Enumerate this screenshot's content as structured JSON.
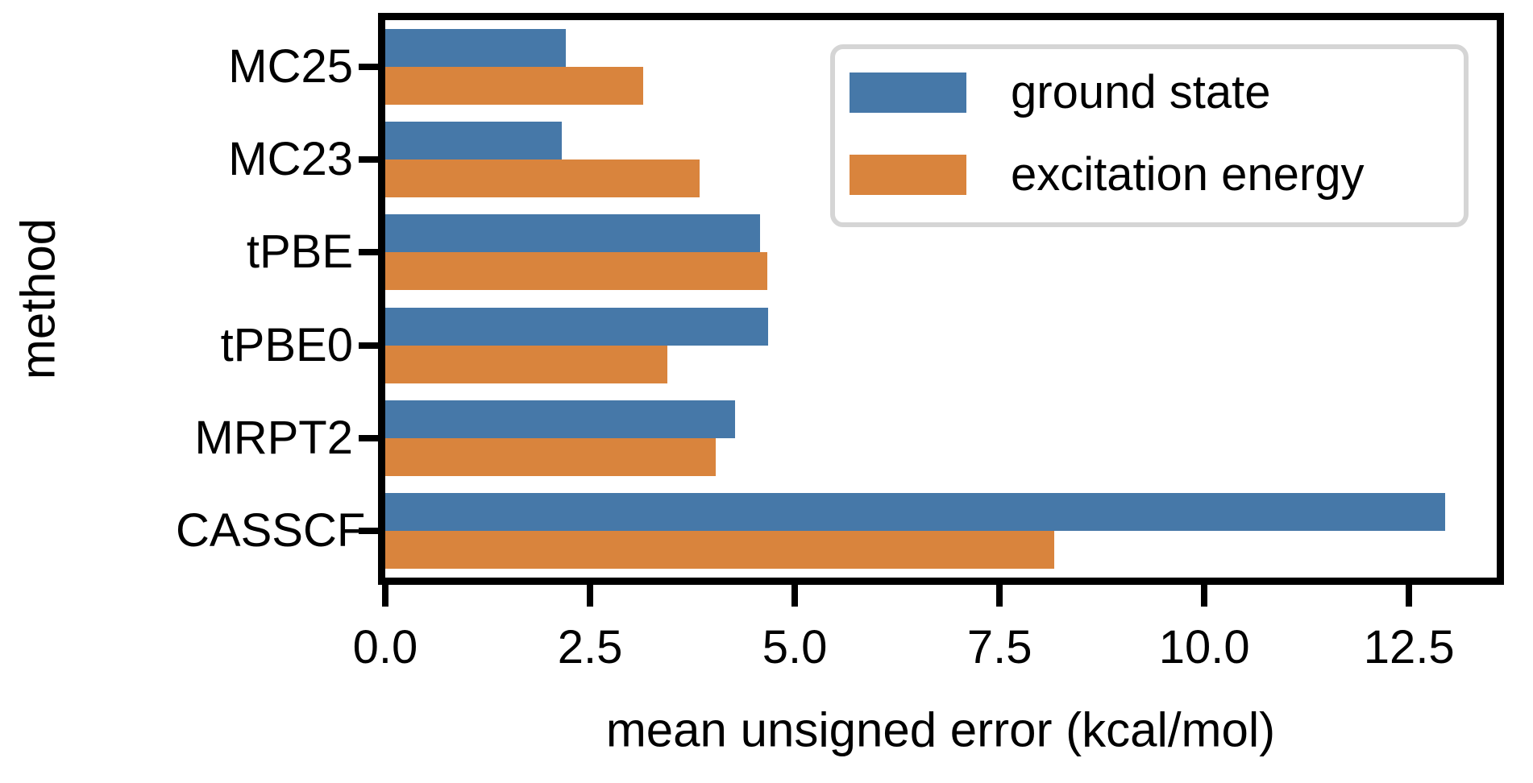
{
  "chart_data": {
    "type": "bar",
    "orientation": "horizontal",
    "title": "",
    "xlabel": "mean unsigned error (kcal/mol)",
    "ylabel": "method",
    "categories": [
      "MC25",
      "MC23",
      "tPBE",
      "tPBE0",
      "MRPT2",
      "CASSCF"
    ],
    "series": [
      {
        "name": "ground state",
        "color": "#4678A8",
        "values": [
          2.2,
          2.15,
          4.58,
          4.67,
          4.27,
          12.94
        ]
      },
      {
        "name": "excitation energy",
        "color": "#D9843D",
        "values": [
          3.15,
          3.84,
          4.66,
          3.44,
          4.03,
          8.17
        ]
      }
    ],
    "xlim": [
      0,
      13.57
    ],
    "xticks": [
      0,
      2.5,
      5,
      7.5,
      10,
      12.5
    ],
    "xtick_labels": [
      "0.0",
      "2.5",
      "5.0",
      "7.5",
      "10.0",
      "12.5"
    ],
    "grid": false,
    "legend_position": "upper right",
    "axis_color": "#000000",
    "background_color": "#FFFFFF"
  },
  "legend": {
    "entries": [
      {
        "label": "ground state",
        "color": "#4678A8"
      },
      {
        "label": "excitation energy",
        "color": "#D9843D"
      }
    ]
  }
}
